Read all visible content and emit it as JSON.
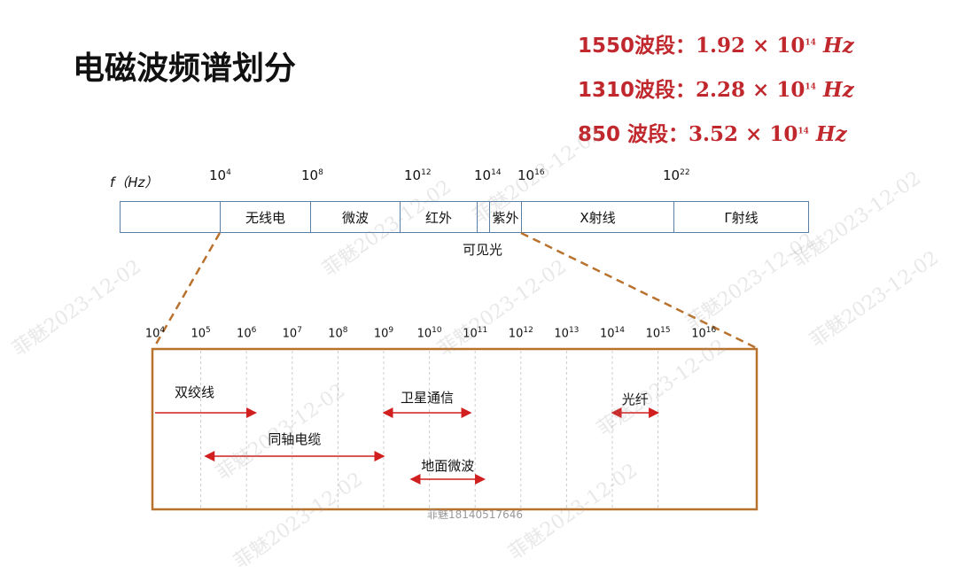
{
  "title": "电磁波频谱划分",
  "bands_info": [
    {
      "label": "1550波段：",
      "value": "1.92 × 10",
      "exp": "14",
      "unit": " Hz"
    },
    {
      "label": "1310波段：",
      "value": "2.28 × 10",
      "exp": "14",
      "unit": " Hz"
    },
    {
      "label": "850 波段：",
      "value": "3.52 × 10",
      "exp": "14",
      "unit": " Hz"
    }
  ],
  "spectrum": {
    "axis_label": "f（Hz）",
    "ticks": [
      {
        "b": "10",
        "e": "4"
      },
      {
        "b": "10",
        "e": "8"
      },
      {
        "b": "10",
        "e": "12"
      },
      {
        "b": "10",
        "e": "14"
      },
      {
        "b": "10",
        "e": "16"
      },
      {
        "b": "10",
        "e": "22"
      }
    ],
    "bands": [
      "",
      "无线电",
      "微波",
      "红外",
      "",
      "紫外",
      "X射线",
      "Γ射线"
    ],
    "visible_label": "可见光"
  },
  "detail": {
    "ticks": [
      {
        "b": "10",
        "e": "4"
      },
      {
        "b": "10",
        "e": "5"
      },
      {
        "b": "10",
        "e": "6"
      },
      {
        "b": "10",
        "e": "7"
      },
      {
        "b": "10",
        "e": "8"
      },
      {
        "b": "10",
        "e": "9"
      },
      {
        "b": "10",
        "e": "10"
      },
      {
        "b": "10",
        "e": "11"
      },
      {
        "b": "10",
        "e": "12"
      },
      {
        "b": "10",
        "e": "13"
      },
      {
        "b": "10",
        "e": "14"
      },
      {
        "b": "10",
        "e": "15"
      },
      {
        "b": "10",
        "e": "16"
      }
    ],
    "media": [
      {
        "name": "双绞线",
        "from_exp": 4,
        "to_exp": 6.2
      },
      {
        "name": "同轴电缆",
        "from_exp": 5.1,
        "to_exp": 9
      },
      {
        "name": "卫星通信",
        "from_exp": 9,
        "to_exp": 10.9
      },
      {
        "name": "地面微波",
        "from_exp": 9.6,
        "to_exp": 11.2
      },
      {
        "name": "光纤",
        "from_exp": 14,
        "to_exp": 15
      }
    ]
  },
  "watermark": "菲魅2023-12-02",
  "footer_watermark": "菲魅18140517646",
  "colors": {
    "accent": "#c0282d",
    "frame": "#b9722e",
    "arrow": "#d11f1f",
    "band_border": "#5a7fa6"
  }
}
